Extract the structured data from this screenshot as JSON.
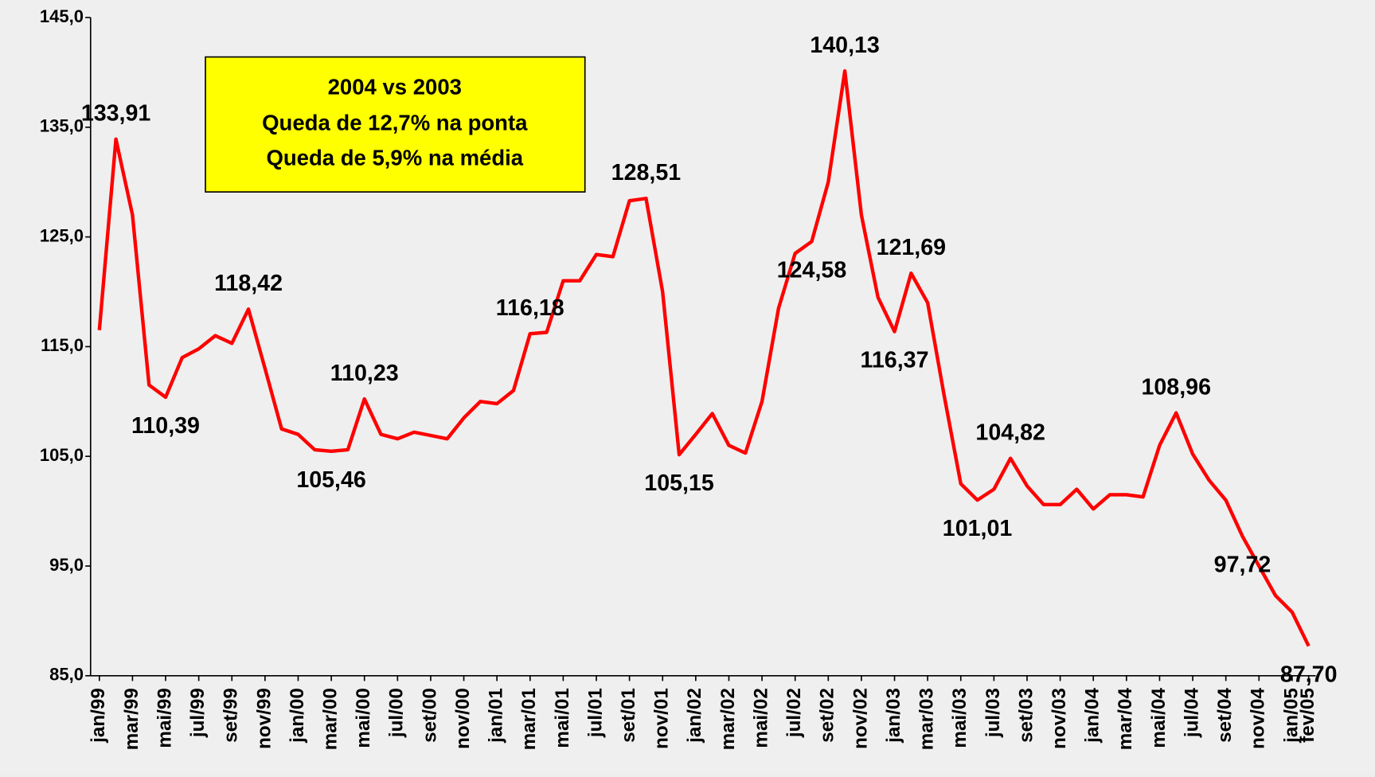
{
  "chart_data": {
    "type": "line",
    "annotation": [
      "2004 vs 2003",
      "Queda de 12,7% na ponta",
      "Queda de 5,9% na média"
    ],
    "categories": [
      "jan/99",
      null,
      "mar/99",
      null,
      "mai/99",
      null,
      "jul/99",
      null,
      "set/99",
      null,
      "nov/99",
      null,
      "jan/00",
      null,
      "mar/00",
      null,
      "mai/00",
      null,
      "jul/00",
      null,
      "set/00",
      null,
      "nov/00",
      null,
      "jan/01",
      null,
      "mar/01",
      null,
      "mai/01",
      null,
      "jul/01",
      null,
      "set/01",
      null,
      "nov/01",
      null,
      "jan/02",
      null,
      "mar/02",
      null,
      "mai/02",
      null,
      "jul/02",
      null,
      "set/02",
      null,
      "nov/02",
      null,
      "jan/03",
      null,
      "mar/03",
      null,
      "mai/03",
      null,
      "jul/03",
      null,
      "set/03",
      null,
      "nov/03",
      null,
      "jan/04",
      null,
      "mar/04",
      null,
      "mai/04",
      null,
      "jul/04",
      null,
      "set/04",
      null,
      "nov/04",
      null,
      "jan/05",
      "fev/05"
    ],
    "series": [
      {
        "color": "#ff0000",
        "values": [
          116.5,
          133.91,
          127,
          111.5,
          110.39,
          114,
          114.8,
          116,
          115.3,
          118.42,
          113,
          107.5,
          107,
          105.6,
          105.46,
          105.6,
          110.23,
          107,
          106.6,
          107.2,
          106.9,
          106.6,
          108.5,
          110,
          109.8,
          111,
          116.18,
          116.3,
          121,
          121,
          123.4,
          123.2,
          128.3,
          128.51,
          120,
          105.15,
          107,
          108.9,
          106,
          105.3,
          110,
          118.5,
          123.5,
          124.58,
          130,
          140.13,
          127,
          119.5,
          116.37,
          121.69,
          119,
          110.5,
          102.5,
          101.01,
          102,
          104.82,
          102.3,
          100.6,
          100.6,
          102,
          100.2,
          101.5,
          101.5,
          101.3,
          106,
          108.96,
          105.2,
          102.8,
          101,
          97.72,
          95,
          92.3,
          90.8,
          87.7
        ],
        "value_labels": [
          null,
          "133,91",
          null,
          null,
          "110,39",
          null,
          null,
          null,
          null,
          "118,42",
          null,
          null,
          null,
          null,
          "105,46",
          null,
          "110,23",
          null,
          null,
          null,
          null,
          null,
          null,
          null,
          null,
          null,
          "116,18",
          null,
          null,
          null,
          null,
          null,
          null,
          "128,51",
          null,
          "105,15",
          null,
          null,
          null,
          null,
          null,
          null,
          null,
          "124,58",
          null,
          "140,13",
          null,
          null,
          "116,37",
          "121,69",
          null,
          null,
          null,
          "101,01",
          null,
          "104,82",
          null,
          null,
          null,
          null,
          null,
          null,
          null,
          null,
          null,
          "108,96",
          null,
          null,
          null,
          "97,72",
          null,
          null,
          null,
          "87,70"
        ]
      }
    ],
    "ylim": [
      85,
      145
    ],
    "yticks": [
      {
        "value": 85,
        "label": "85,0"
      },
      {
        "value": 95,
        "label": "95,0"
      },
      {
        "value": 105,
        "label": "105,0"
      },
      {
        "value": 115,
        "label": "115,0"
      },
      {
        "value": 125,
        "label": "125,0"
      },
      {
        "value": 135,
        "label": "135,0"
      },
      {
        "value": 145,
        "label": "145,0"
      }
    ]
  }
}
